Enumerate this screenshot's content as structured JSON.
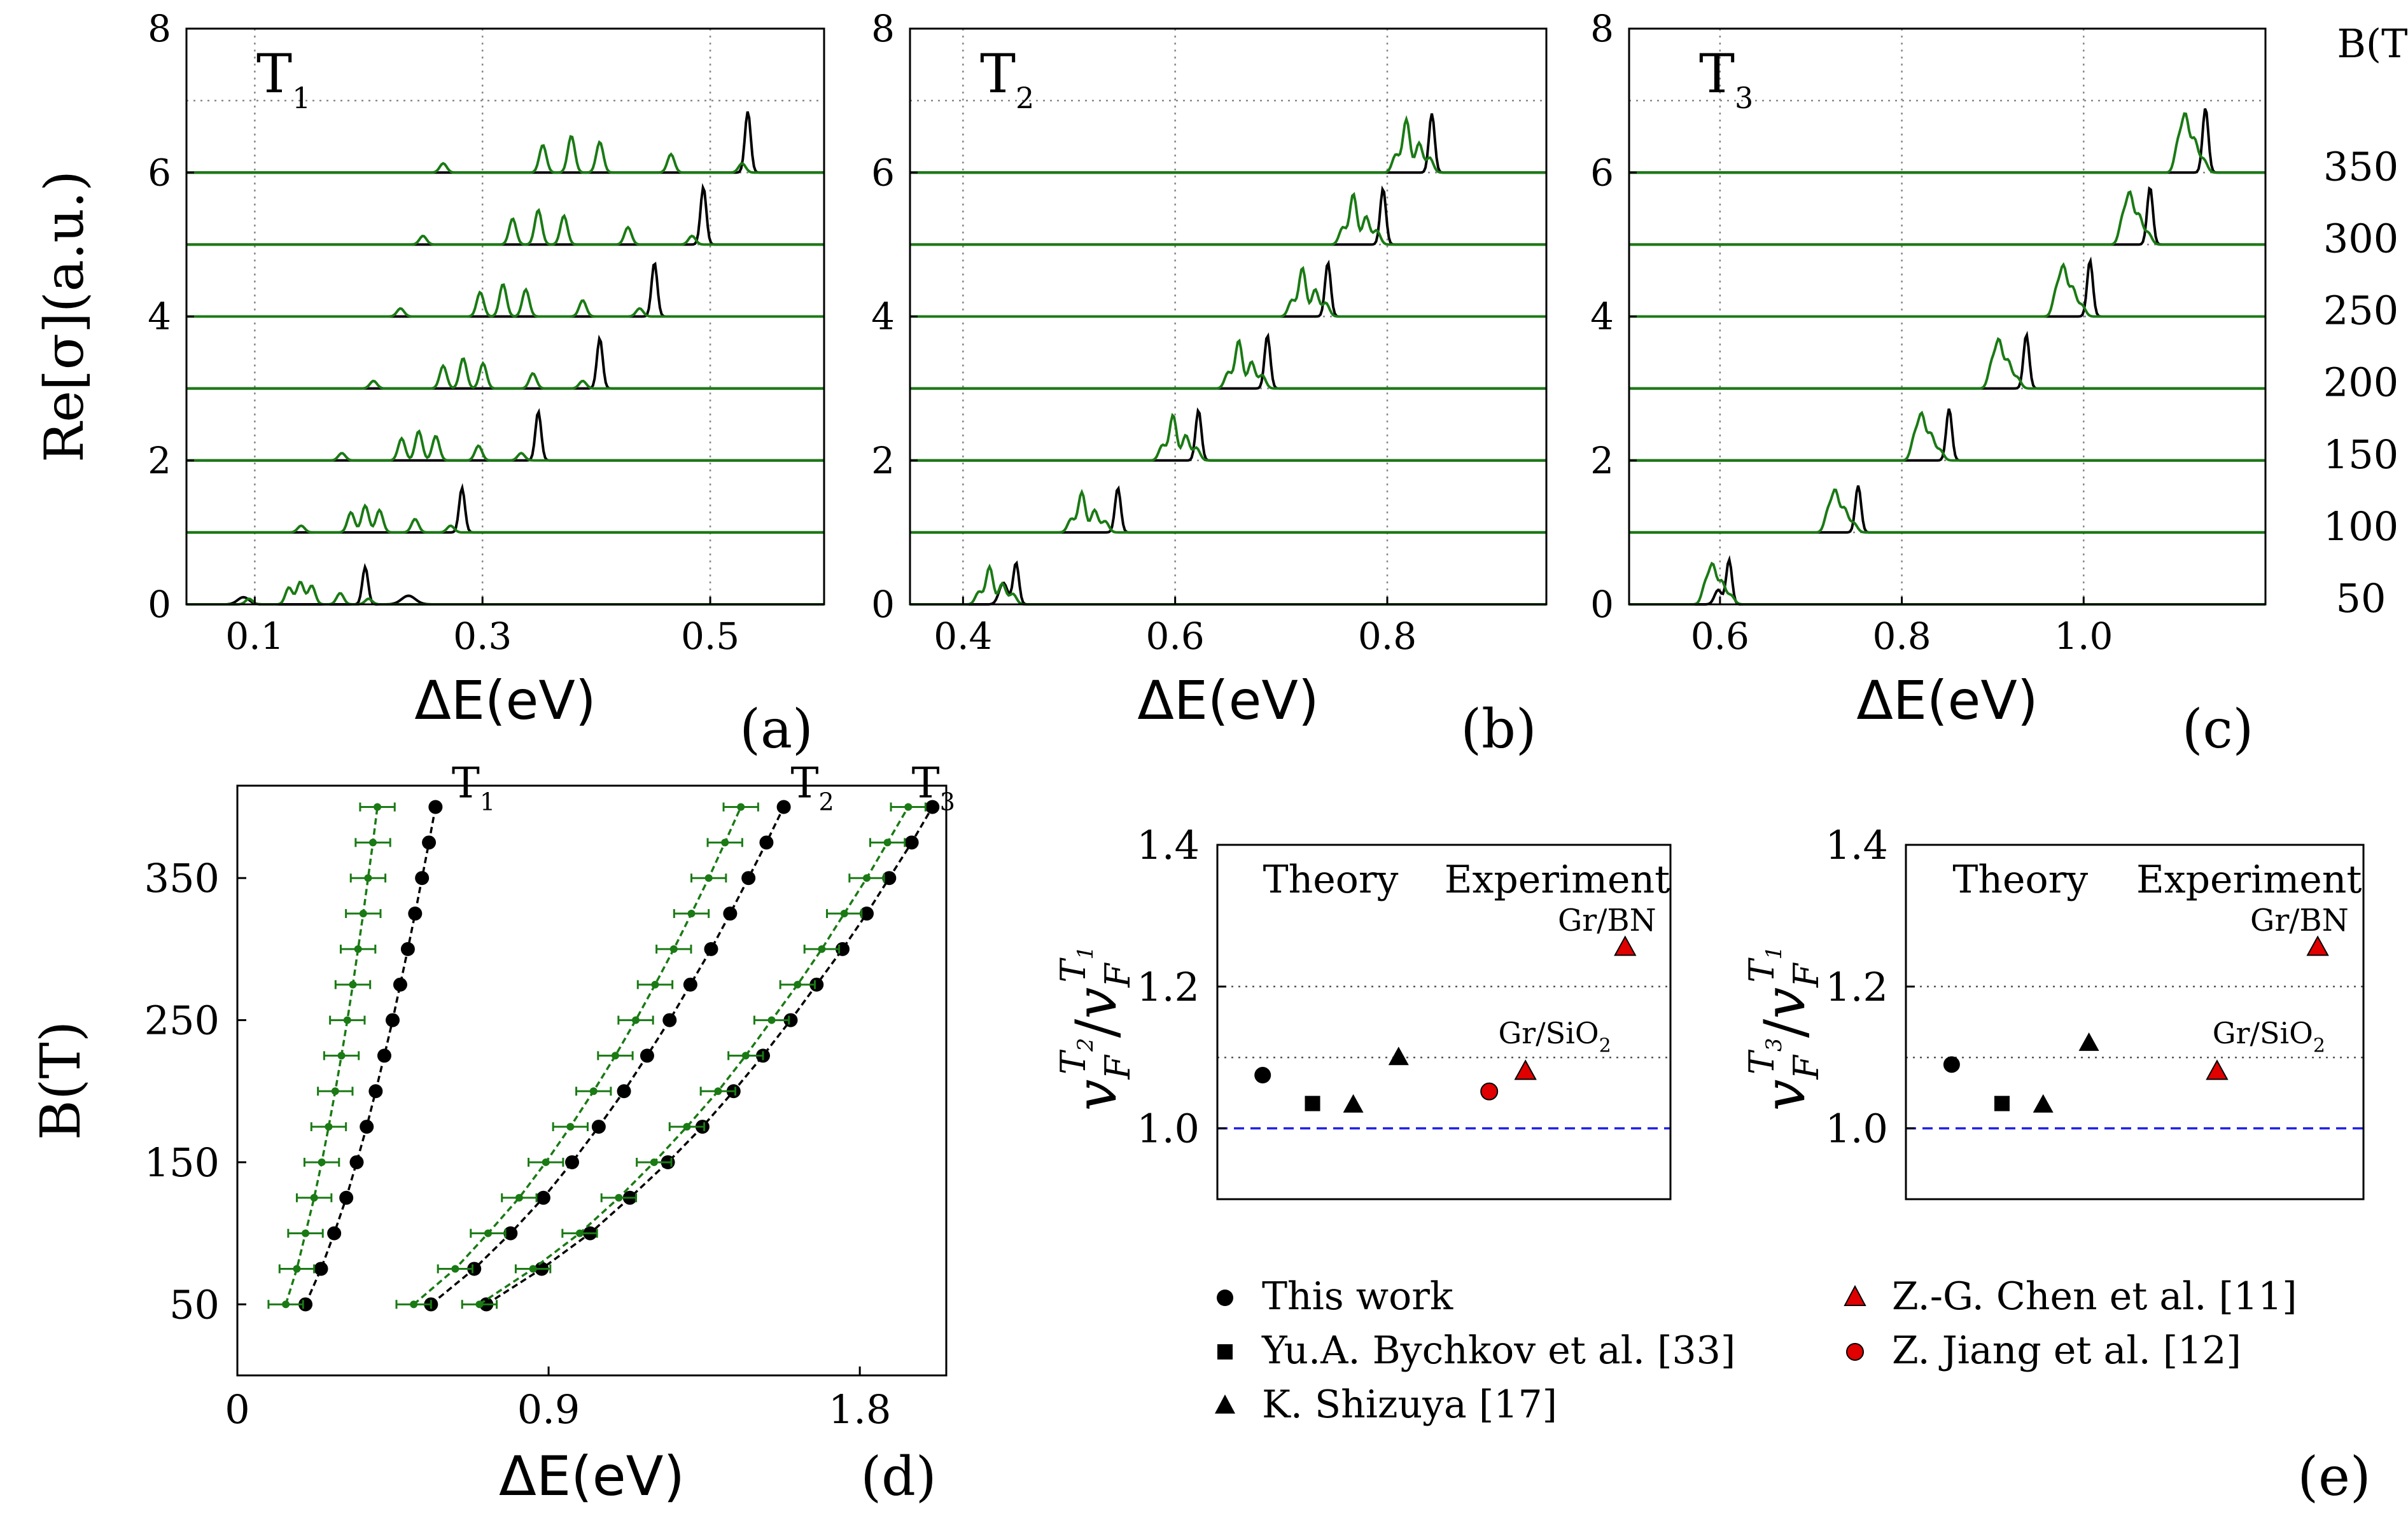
{
  "panels_top": [
    {
      "label": "(a)",
      "title": "T",
      "title_sub": "1",
      "xlabel": "ΔE(eV)",
      "ylabel": "Re[σ](a.u.)",
      "xlim": [
        0.04,
        0.6
      ],
      "ylim": [
        0,
        8
      ],
      "xticks": [
        0.1,
        0.3,
        0.5
      ],
      "xtick_labels": [
        "0.1",
        "0.3",
        "0.5"
      ],
      "yticks": [
        0,
        2,
        4,
        6,
        8
      ],
      "ytick_labels": [
        "0",
        "2",
        "4",
        "6",
        "8"
      ]
    },
    {
      "label": "(b)",
      "title": "T",
      "title_sub": "2",
      "xlabel": "ΔE(eV)",
      "xlim": [
        0.35,
        0.95
      ],
      "ylim": [
        0,
        8
      ],
      "xticks": [
        0.4,
        0.6,
        0.8
      ],
      "xtick_labels": [
        "0.4",
        "0.6",
        "0.8"
      ],
      "yticks": [
        0,
        2,
        4,
        6,
        8
      ],
      "ytick_labels": [
        "0",
        "2",
        "4",
        "6",
        "8"
      ]
    },
    {
      "label": "(c)",
      "title": "T",
      "title_sub": "3",
      "xlabel": "ΔE(eV)",
      "xlim": [
        0.5,
        1.2
      ],
      "ylim": [
        0,
        8
      ],
      "xticks": [
        0.6,
        0.8,
        1.0
      ],
      "xtick_labels": [
        "0.6",
        "0.8",
        "1.0"
      ],
      "yticks": [
        0,
        2,
        4,
        6,
        8
      ],
      "ytick_labels": [
        "0",
        "2",
        "4",
        "6",
        "8"
      ],
      "right_title": "B(T)",
      "right_labels": [
        "350",
        "300",
        "250",
        "200",
        "150",
        "100",
        "50"
      ]
    }
  ],
  "panel_d": {
    "label": "(d)",
    "xlabel": "ΔE(eV)",
    "ylabel": "B(T)",
    "xlim": [
      0,
      2.05
    ],
    "ylim": [
      0,
      415
    ],
    "xticks": [
      0,
      0.9,
      1.8
    ],
    "xtick_labels": [
      "0",
      "0.9",
      "1.8"
    ],
    "yticks": [
      50,
      150,
      250,
      350
    ],
    "ytick_labels": [
      "50",
      "150",
      "250",
      "350"
    ],
    "curve_labels": [
      {
        "text": "T",
        "sub": "1"
      },
      {
        "text": "T",
        "sub": "2"
      },
      {
        "text": "T",
        "sub": "3"
      }
    ]
  },
  "panel_e": {
    "label": "(e)",
    "ylim": [
      0.9,
      1.4
    ],
    "yticks": [
      1.0,
      1.2,
      1.4
    ],
    "ytick_labels": [
      "1.0",
      "1.2",
      "1.4"
    ],
    "sub_panels": [
      {
        "ylabel_num": "v",
        "ylabel_num_sup": "T",
        "ylabel_num_supsub": "2",
        "ylabel_num_sub": "F",
        "ylabel_den": "v",
        "ylabel_den_sup": "T",
        "ylabel_den_supsub": "1",
        "ylabel_den_sub": "F"
      },
      {
        "ylabel_num": "v",
        "ylabel_num_sup": "T",
        "ylabel_num_supsub": "3",
        "ylabel_num_sub": "F",
        "ylabel_den": "v",
        "ylabel_den_sup": "T",
        "ylabel_den_supsub": "1",
        "ylabel_den_sub": "F"
      }
    ],
    "header_theory": "Theory",
    "header_experiment": "Experiment",
    "label_grbn": "Gr/BN",
    "label_grsio2": "Gr/SiO",
    "label_grsio2_sub": "2",
    "legend": [
      {
        "text": "This work",
        "marker": "circle",
        "color": "#000000"
      },
      {
        "text": "Yu.A. Bychkov et al. [33]",
        "marker": "square",
        "color": "#000000"
      },
      {
        "text": "K. Shizuya [17]",
        "marker": "triangle",
        "color": "#000000"
      },
      {
        "text": "Z.-G. Chen et al. [11]",
        "marker": "triangle",
        "color": "#e00000"
      },
      {
        "text": "Z. Jiang et al. [12]",
        "marker": "circle",
        "color": "#e00000"
      }
    ]
  },
  "colors": {
    "green": "#1a7a14",
    "black": "#000000",
    "red": "#e00000",
    "blue": "#2020ee",
    "grid": "#8a8a8a"
  },
  "chart_data": [
    {
      "type": "line",
      "panel": "(a)",
      "title": "T1",
      "field_values_T": [
        50,
        100,
        150,
        200,
        250,
        300,
        350
      ],
      "baselines": [
        0,
        1,
        2,
        3,
        4,
        5,
        6
      ],
      "series": [
        {
          "name": "black",
          "peak_x": [
            0.197,
            0.282,
            0.349,
            0.403,
            0.451,
            0.494,
            0.533
          ]
        },
        {
          "name": "green",
          "peak_x": [
            0.14,
            0.197,
            0.244,
            0.283,
            0.318,
            0.349,
            0.378
          ]
        }
      ]
    },
    {
      "type": "line",
      "panel": "(b)",
      "title": "T2",
      "field_values_T": [
        50,
        100,
        150,
        200,
        250,
        300,
        350
      ],
      "baselines": [
        0,
        1,
        2,
        3,
        4,
        5,
        6
      ],
      "series": [
        {
          "name": "black",
          "peak_x": [
            0.45,
            0.546,
            0.622,
            0.687,
            0.744,
            0.796,
            0.842
          ]
        },
        {
          "name": "green",
          "peak_x": [
            0.425,
            0.512,
            0.598,
            0.66,
            0.72,
            0.768,
            0.818
          ]
        }
      ]
    },
    {
      "type": "line",
      "panel": "(c)",
      "title": "T3",
      "field_values_T": [
        50,
        100,
        150,
        200,
        250,
        300,
        350
      ],
      "baselines": [
        0,
        1,
        2,
        3,
        4,
        5,
        6
      ],
      "series": [
        {
          "name": "black",
          "peak_x": [
            0.61,
            0.752,
            0.852,
            0.937,
            1.007,
            1.073,
            1.134
          ]
        },
        {
          "name": "green",
          "peak_x": [
            0.592,
            0.727,
            0.822,
            0.907,
            0.978,
            1.051,
            1.112
          ]
        }
      ]
    },
    {
      "type": "scatter",
      "panel": "(d)",
      "y": [
        50,
        75,
        100,
        125,
        150,
        175,
        200,
        225,
        250,
        275,
        300,
        325,
        350,
        375,
        400
      ],
      "series": [
        {
          "name": "T1 black",
          "x": [
            0.197,
            0.242,
            0.28,
            0.315,
            0.345,
            0.374,
            0.4,
            0.425,
            0.449,
            0.471,
            0.493,
            0.514,
            0.534,
            0.554,
            0.573
          ]
        },
        {
          "name": "T1 green",
          "x": [
            0.14,
            0.172,
            0.197,
            0.222,
            0.244,
            0.264,
            0.283,
            0.301,
            0.318,
            0.334,
            0.349,
            0.364,
            0.378,
            0.392,
            0.405
          ],
          "xerr": 0.05
        },
        {
          "name": "T2 black",
          "x": [
            0.56,
            0.685,
            0.79,
            0.885,
            0.968,
            1.045,
            1.118,
            1.185,
            1.25,
            1.31,
            1.37,
            1.425,
            1.478,
            1.53,
            1.58
          ]
        },
        {
          "name": "T2 green",
          "x": [
            0.51,
            0.63,
            0.725,
            0.815,
            0.892,
            0.963,
            1.03,
            1.093,
            1.152,
            1.208,
            1.262,
            1.313,
            1.363,
            1.41,
            1.456
          ],
          "xerr": 0.05
        },
        {
          "name": "T3 black",
          "x": [
            0.72,
            0.88,
            1.02,
            1.135,
            1.245,
            1.345,
            1.435,
            1.52,
            1.6,
            1.675,
            1.75,
            1.82,
            1.885,
            1.95,
            2.01
          ]
        },
        {
          "name": "T3 green",
          "x": [
            0.7,
            0.855,
            0.99,
            1.103,
            1.205,
            1.3,
            1.39,
            1.47,
            1.545,
            1.62,
            1.69,
            1.755,
            1.82,
            1.88,
            1.94
          ],
          "xerr": 0.05
        }
      ]
    },
    {
      "type": "scatter",
      "panel": "(e) left",
      "ylim": [
        0.9,
        1.4
      ],
      "reference_lines": {
        "dashed_blue": 1.0,
        "dotted": [
          1.1,
          1.2
        ]
      },
      "points": [
        {
          "source": "This work",
          "y": 1.075
        },
        {
          "source": "Yu.A. Bychkov et al. [33]",
          "y": 1.035
        },
        {
          "source": "K. Shizuya [17]",
          "y": 1.033
        },
        {
          "source": "K. Shizuya [17]",
          "y": 1.1
        },
        {
          "source": "Z. Jiang et al. [12]",
          "y": 1.052
        },
        {
          "source": "Z.-G. Chen et al. [11]",
          "y": 1.08
        },
        {
          "source": "Z.-G. Chen et al. [11]",
          "y": 1.255
        }
      ]
    },
    {
      "type": "scatter",
      "panel": "(e) right",
      "ylim": [
        0.9,
        1.4
      ],
      "reference_lines": {
        "dashed_blue": 1.0,
        "dotted": [
          1.1,
          1.2
        ]
      },
      "points": [
        {
          "source": "This work",
          "y": 1.09
        },
        {
          "source": "Yu.A. Bychkov et al. [33]",
          "y": 1.035
        },
        {
          "source": "K. Shizuya [17]",
          "y": 1.033
        },
        {
          "source": "K. Shizuya [17]",
          "y": 1.12
        },
        {
          "source": "Z.-G. Chen et al. [11]",
          "y": 1.08
        },
        {
          "source": "Z.-G. Chen et al. [11]",
          "y": 1.255
        }
      ]
    }
  ]
}
